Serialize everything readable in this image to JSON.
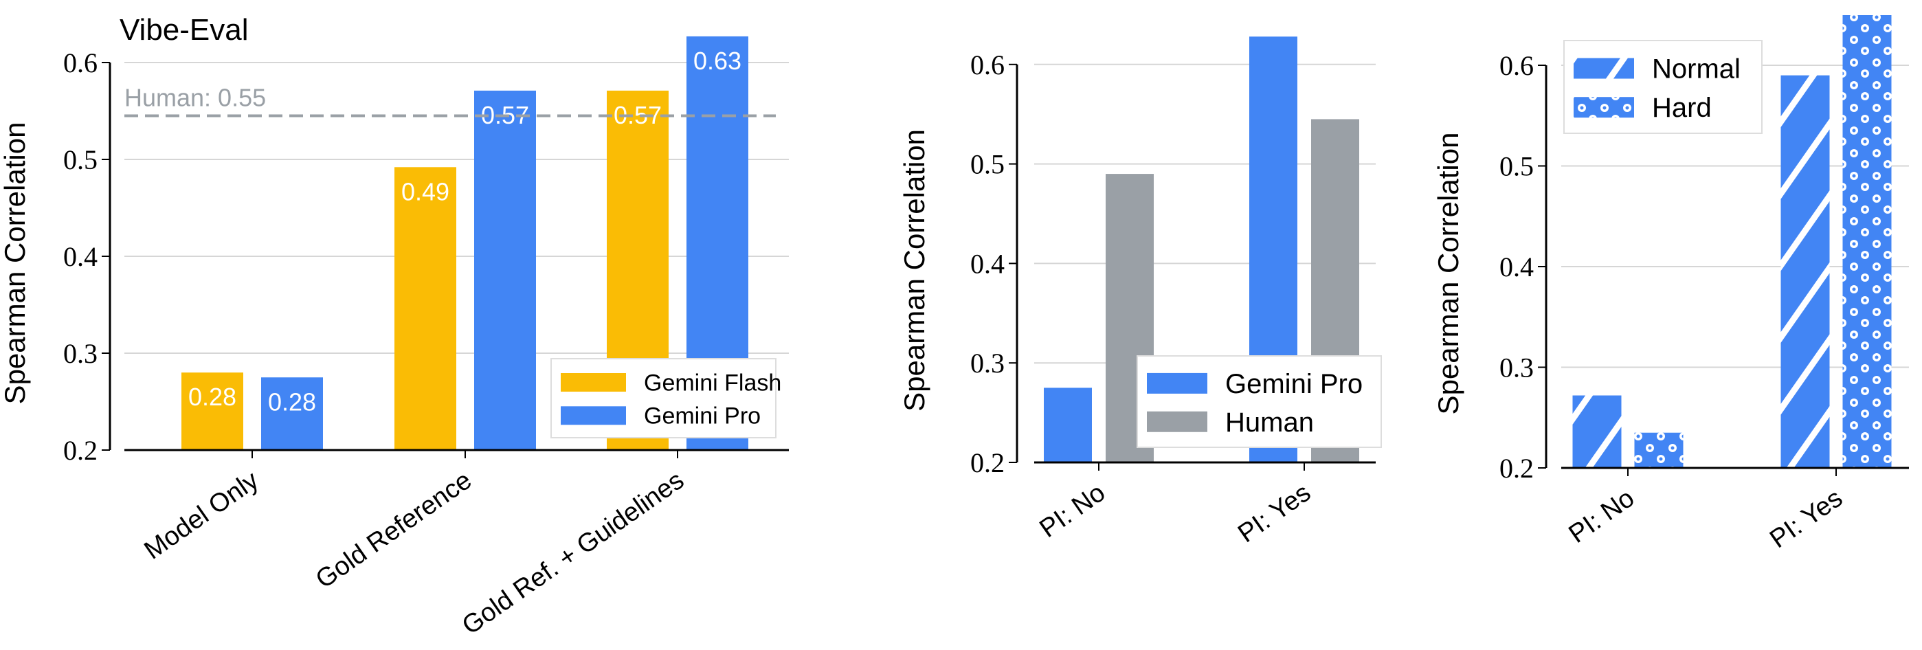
{
  "chart_data": [
    {
      "type": "bar",
      "title": "Vibe-Eval",
      "xlabel": "",
      "ylabel": "Spearman Correlation",
      "ylim": [
        0.2,
        0.63
      ],
      "yticks": [
        "0.2",
        "0.3",
        "0.4",
        "0.5",
        "0.6"
      ],
      "grid": true,
      "categories": [
        "Model Only",
        "Gold Reference",
        "Gold Ref. + Guidelines"
      ],
      "series": [
        {
          "name": "Gemini Flash",
          "color": "#FABC05",
          "values": [
            0.28,
            0.492,
            0.571
          ],
          "labels": [
            "0.28",
            "0.49",
            "0.57"
          ]
        },
        {
          "name": "Gemini Pro",
          "color": "#4285F4",
          "values": [
            0.275,
            0.571,
            0.627
          ],
          "labels": [
            "0.28",
            "0.57",
            "0.63"
          ]
        }
      ],
      "reference_line": {
        "label": "Human:  0.55",
        "value": 0.545,
        "color": "#9AA0A6"
      },
      "legend_placement": "lower-right"
    },
    {
      "type": "bar",
      "xlabel": "",
      "ylabel": "Spearman Correlation",
      "ylim": [
        0.2,
        0.63
      ],
      "yticks": [
        "0.2",
        "0.3",
        "0.4",
        "0.5",
        "0.6"
      ],
      "grid": true,
      "categories": [
        "PI: No",
        "PI: Yes"
      ],
      "series": [
        {
          "name": "Gemini Pro",
          "color": "#4285F4",
          "values": [
            0.275,
            0.628
          ]
        },
        {
          "name": "Human",
          "color": "#9AA0A6",
          "values": [
            0.49,
            0.545
          ]
        }
      ],
      "legend_placement": "lower-right"
    },
    {
      "type": "bar",
      "xlabel": "",
      "ylabel": "Spearman Correlation",
      "ylim": [
        0.2,
        0.645
      ],
      "yticks": [
        "0.2",
        "0.3",
        "0.4",
        "0.5",
        "0.6"
      ],
      "grid": true,
      "categories": [
        "PI: No",
        "PI: Yes"
      ],
      "series": [
        {
          "name": "Normal",
          "color": "#4285F4",
          "pattern": "hatch",
          "values": [
            0.272,
            0.59
          ]
        },
        {
          "name": "Hard",
          "color": "#4285F4",
          "pattern": "dots",
          "values": [
            0.235,
            0.65
          ]
        }
      ],
      "legend_placement": "upper-left"
    }
  ]
}
